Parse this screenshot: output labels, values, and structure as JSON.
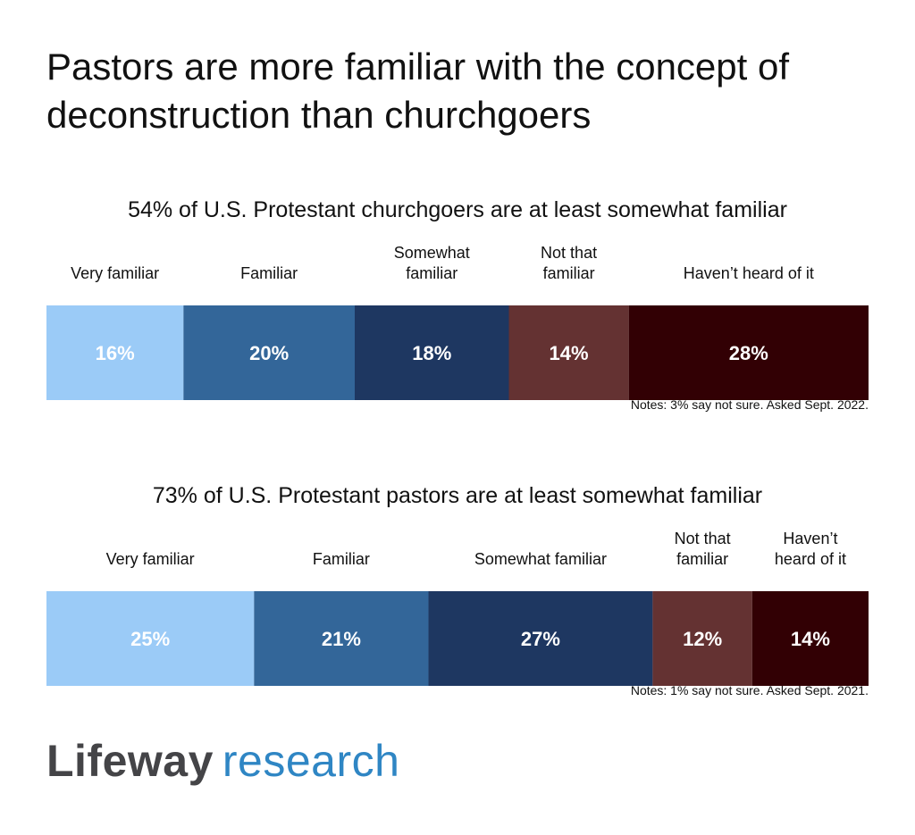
{
  "title": "Pastors are more familiar with the concept of deconstruction than churchgoers",
  "chart_data": [
    {
      "type": "bar",
      "orientation": "horizontal-stacked",
      "subtitle": "54% of U.S. Protestant churchgoers are at least somewhat familiar",
      "categories": [
        [
          "Very familiar"
        ],
        [
          "Familiar"
        ],
        [
          "Somewhat",
          "familiar"
        ],
        [
          "Not that",
          "familiar"
        ],
        [
          "Haven’t heard of it"
        ]
      ],
      "values": [
        16,
        20,
        18,
        14,
        28
      ],
      "value_labels": [
        "16%",
        "20%",
        "18%",
        "14%",
        "28%"
      ],
      "colors": [
        "#9bcbf7",
        "#336699",
        "#1e3761",
        "#643232",
        "#320004"
      ],
      "label_colors": [
        "#ffffff",
        "#ffffff",
        "#ffffff",
        "#ffffff",
        "#ffffff"
      ],
      "note": "Notes: 3% say not sure. Asked Sept. 2022."
    },
    {
      "type": "bar",
      "orientation": "horizontal-stacked",
      "subtitle": "73% of U.S. Protestant pastors are at least somewhat familiar",
      "categories": [
        [
          "Very familiar"
        ],
        [
          "Familiar"
        ],
        [
          "Somewhat familiar"
        ],
        [
          "Not that",
          "familiar"
        ],
        [
          "Haven’t",
          "heard of it"
        ]
      ],
      "values": [
        25,
        21,
        27,
        12,
        14
      ],
      "value_labels": [
        "25%",
        "21%",
        "27%",
        "12%",
        "14%"
      ],
      "colors": [
        "#9bcbf7",
        "#336699",
        "#1e3761",
        "#643232",
        "#320004"
      ],
      "label_colors": [
        "#ffffff",
        "#ffffff",
        "#ffffff",
        "#ffffff",
        "#ffffff"
      ],
      "note": "Notes: 1% say not sure. Asked Sept. 2021."
    }
  ],
  "logo": {
    "part1": "Lifeway",
    "part2": "research"
  }
}
